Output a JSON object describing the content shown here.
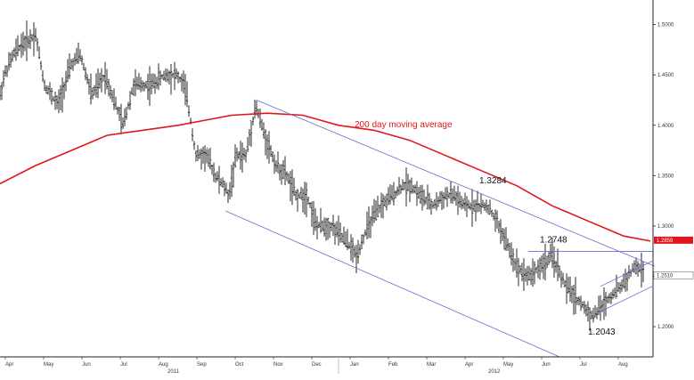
{
  "chart_data": {
    "type": "ohlc",
    "title": "",
    "xlabel": "",
    "ylabel": "",
    "ylim": [
      1.17,
      1.52
    ],
    "y_ticks": [
      "1.2000",
      "1.2500",
      "1.3000",
      "1.3500",
      "1.4000",
      "1.4500",
      "1.5000"
    ],
    "x_month_labels": [
      "Apr",
      "May",
      "Jun",
      "Jul",
      "Aug",
      "Sep",
      "Oct",
      "Nov",
      "Dec",
      "Jan",
      "Feb",
      "Mar",
      "Apr",
      "May",
      "Jun",
      "Jul",
      "Aug"
    ],
    "x_year_labels": [
      "2011",
      "2012"
    ],
    "price_path": [
      [
        0,
        1.43
      ],
      [
        5,
        1.45
      ],
      [
        15,
        1.47
      ],
      [
        24,
        1.48
      ],
      [
        33,
        1.485
      ],
      [
        40,
        1.49
      ],
      [
        50,
        1.44
      ],
      [
        65,
        1.42
      ],
      [
        80,
        1.46
      ],
      [
        90,
        1.47
      ],
      [
        103,
        1.43
      ],
      [
        118,
        1.45
      ],
      [
        130,
        1.42
      ],
      [
        138,
        1.4
      ],
      [
        150,
        1.44
      ],
      [
        170,
        1.44
      ],
      [
        185,
        1.45
      ],
      [
        198,
        1.45
      ],
      [
        207,
        1.44
      ],
      [
        213,
        1.41
      ],
      [
        220,
        1.37
      ],
      [
        232,
        1.37
      ],
      [
        242,
        1.35
      ],
      [
        251,
        1.34
      ],
      [
        257,
        1.33
      ],
      [
        265,
        1.37
      ],
      [
        276,
        1.37
      ],
      [
        287,
        1.42
      ],
      [
        297,
        1.39
      ],
      [
        310,
        1.36
      ],
      [
        322,
        1.35
      ],
      [
        332,
        1.33
      ],
      [
        345,
        1.33
      ],
      [
        355,
        1.3
      ],
      [
        372,
        1.3
      ],
      [
        383,
        1.29
      ],
      [
        393,
        1.28
      ],
      [
        400,
        1.27
      ],
      [
        413,
        1.3
      ],
      [
        428,
        1.32
      ],
      [
        440,
        1.33
      ],
      [
        452,
        1.34
      ],
      [
        462,
        1.34
      ],
      [
        472,
        1.33
      ],
      [
        485,
        1.32
      ],
      [
        500,
        1.33
      ],
      [
        510,
        1.33
      ],
      [
        520,
        1.32
      ],
      [
        535,
        1.32
      ],
      [
        547,
        1.32
      ],
      [
        560,
        1.3
      ],
      [
        570,
        1.28
      ],
      [
        580,
        1.26
      ],
      [
        593,
        1.25
      ],
      [
        607,
        1.26
      ],
      [
        620,
        1.27
      ],
      [
        635,
        1.24
      ],
      [
        645,
        1.23
      ],
      [
        655,
        1.22
      ],
      [
        665,
        1.21
      ],
      [
        675,
        1.22
      ],
      [
        685,
        1.23
      ],
      [
        697,
        1.24
      ],
      [
        705,
        1.25
      ],
      [
        713,
        1.26
      ],
      [
        722,
        1.255
      ]
    ],
    "moving_average": {
      "label": "200 day moving average",
      "color": "#e0161b",
      "path": [
        [
          0,
          1.342
        ],
        [
          40,
          1.36
        ],
        [
          80,
          1.375
        ],
        [
          120,
          1.39
        ],
        [
          160,
          1.395
        ],
        [
          200,
          1.4
        ],
        [
          230,
          1.405
        ],
        [
          260,
          1.41
        ],
        [
          300,
          1.412
        ],
        [
          340,
          1.41
        ],
        [
          380,
          1.4
        ],
        [
          420,
          1.395
        ],
        [
          460,
          1.385
        ],
        [
          500,
          1.37
        ],
        [
          540,
          1.355
        ],
        [
          580,
          1.34
        ],
        [
          620,
          1.32
        ],
        [
          660,
          1.305
        ],
        [
          700,
          1.29
        ],
        [
          730,
          1.285
        ]
      ],
      "last_value": "1.2859"
    },
    "channel_upper": [
      [
        288,
        1.425
      ],
      [
        735,
        1.26
      ]
    ],
    "channel_lower": [
      [
        253,
        1.315
      ],
      [
        628,
        1.17
      ]
    ],
    "recent_channel_upper": [
      [
        674,
        1.24
      ],
      [
        732,
        1.265
      ]
    ],
    "recent_channel_lower": [
      [
        674,
        1.215
      ],
      [
        732,
        1.24
      ]
    ],
    "resistance_level": 1.2748,
    "resistance_from_x": 593,
    "last_price": "1.2510",
    "annotations": [
      {
        "text": "1.3284",
        "x": 538,
        "y": 1.33
      },
      {
        "text": "1.2748",
        "x": 606,
        "y": 1.2748
      },
      {
        "text": "1.2043",
        "x": 660,
        "y": 1.2043
      }
    ],
    "grid": false,
    "legend": "none"
  }
}
